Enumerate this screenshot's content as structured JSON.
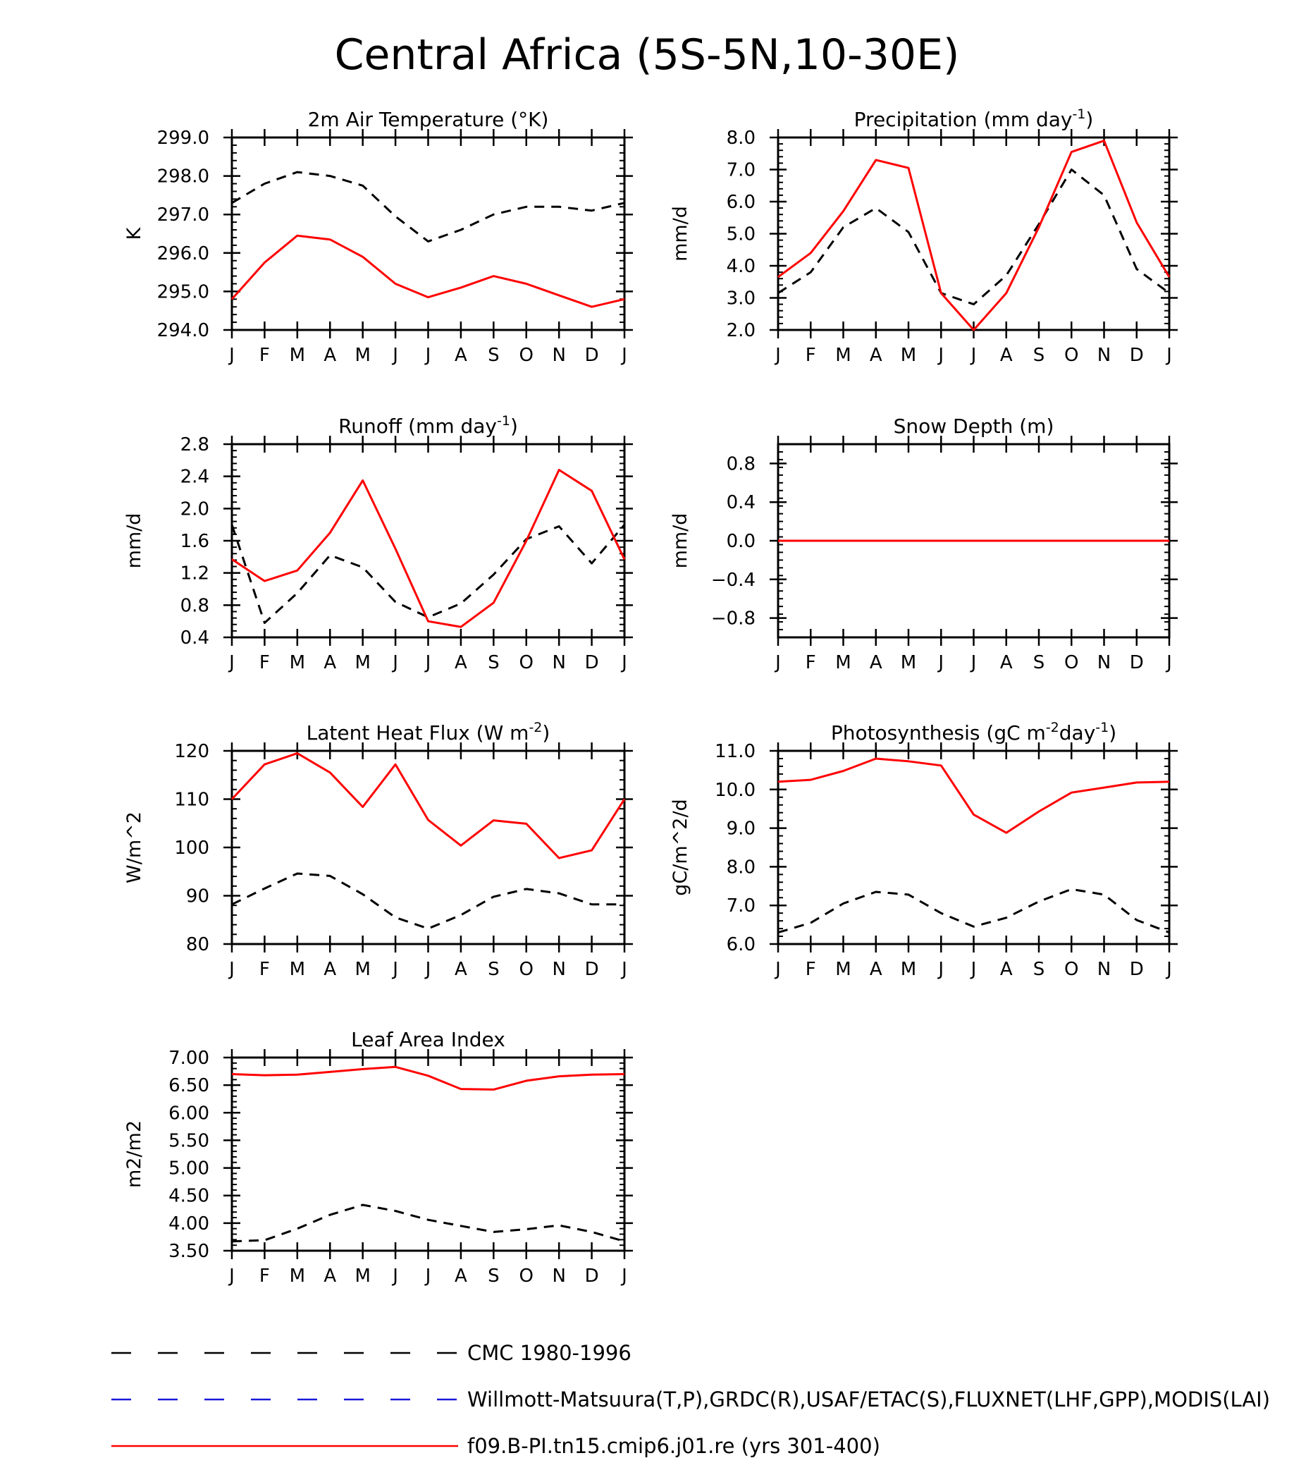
{
  "figure": {
    "title": "Central Africa (5S-5N,10-30E)"
  },
  "legend": [
    {
      "label": "CMC 1980-1996",
      "color": "#000000",
      "dash": "dashed"
    },
    {
      "label": "Willmott-Matsuura(T,P),GRDC(R),USAF/ETAC(S),FLUXNET(LHF,GPP),MODIS(LAI)",
      "color": "#1a1adc",
      "dash": "dashed"
    },
    {
      "label": "f09.B-PI.tn15.cmip6.j01.re (yrs 301-400)",
      "color": "#ff0000",
      "dash": "solid"
    }
  ],
  "chart_data": [
    {
      "type": "line",
      "title": "2m Air Temperature (°K)",
      "ylabel": "K",
      "categories": [
        "J",
        "F",
        "M",
        "A",
        "M",
        "J",
        "J",
        "A",
        "S",
        "O",
        "N",
        "D",
        "J"
      ],
      "ylim": [
        294.0,
        299.0
      ],
      "yticks": [
        294.0,
        295.0,
        296.0,
        297.0,
        298.0,
        299.0
      ],
      "ytick_labels": [
        "294.0",
        "295.0",
        "296.0",
        "297.0",
        "298.0",
        "299.0"
      ],
      "series": [
        {
          "name": "CMC 1980-1996",
          "color": "#000000",
          "dash": "dashed",
          "values": [
            297.3,
            297.8,
            298.1,
            298.0,
            297.75,
            296.95,
            296.3,
            296.6,
            297.0,
            297.2,
            297.2,
            297.1,
            297.3
          ]
        },
        {
          "name": "f09.B-PI.tn15.cmip6.j01.re (yrs 301-400)",
          "color": "#ff0000",
          "dash": "solid",
          "values": [
            294.8,
            295.75,
            296.45,
            296.35,
            295.9,
            295.2,
            294.85,
            295.1,
            295.4,
            295.2,
            294.9,
            294.6,
            294.8
          ]
        }
      ]
    },
    {
      "type": "line",
      "title": "Precipitation (mm day",
      "title_sup": "-1",
      "title_tail": ")",
      "ylabel": "mm/d",
      "categories": [
        "J",
        "F",
        "M",
        "A",
        "M",
        "J",
        "J",
        "A",
        "S",
        "O",
        "N",
        "D",
        "J"
      ],
      "ylim": [
        2.0,
        8.0
      ],
      "yticks": [
        2.0,
        3.0,
        4.0,
        5.0,
        6.0,
        7.0,
        8.0
      ],
      "ytick_labels": [
        "2.0",
        "3.0",
        "4.0",
        "5.0",
        "6.0",
        "7.0",
        "8.0"
      ],
      "series": [
        {
          "name": "CMC 1980-1996",
          "color": "#000000",
          "dash": "dashed",
          "values": [
            3.15,
            3.8,
            5.2,
            5.8,
            5.05,
            3.15,
            2.8,
            3.7,
            5.3,
            7.0,
            6.2,
            3.9,
            3.15
          ]
        },
        {
          "name": "f09.B-PI.tn15.cmip6.j01.re (yrs 301-400)",
          "color": "#ff0000",
          "dash": "solid",
          "values": [
            3.65,
            4.4,
            5.7,
            7.3,
            7.05,
            3.15,
            2.0,
            3.15,
            5.2,
            7.55,
            7.9,
            5.35,
            3.65
          ]
        }
      ]
    },
    {
      "type": "line",
      "title": "Runoff (mm day",
      "title_sup": "-1",
      "title_tail": ")",
      "ylabel": "mm/d",
      "categories": [
        "J",
        "F",
        "M",
        "A",
        "M",
        "J",
        "J",
        "A",
        "S",
        "O",
        "N",
        "D",
        "J"
      ],
      "ylim": [
        0.4,
        2.8
      ],
      "yticks": [
        0.4,
        0.8,
        1.2,
        1.6,
        2.0,
        2.4,
        2.8
      ],
      "ytick_labels": [
        "0.4",
        "0.8",
        "1.2",
        "1.6",
        "2.0",
        "2.4",
        "2.8"
      ],
      "series": [
        {
          "name": "CMC 1980-1996",
          "color": "#000000",
          "dash": "dashed",
          "values": [
            1.8,
            0.58,
            0.95,
            1.42,
            1.27,
            0.84,
            0.65,
            0.82,
            1.18,
            1.62,
            1.78,
            1.32,
            1.8
          ]
        },
        {
          "name": "f09.B-PI.tn15.cmip6.j01.re (yrs 301-400)",
          "color": "#ff0000",
          "dash": "solid",
          "values": [
            1.37,
            1.1,
            1.23,
            1.7,
            2.35,
            1.5,
            0.6,
            0.53,
            0.83,
            1.6,
            2.48,
            2.22,
            1.37
          ]
        }
      ]
    },
    {
      "type": "line",
      "title": "Snow Depth (m)",
      "ylabel": "mm/d",
      "categories": [
        "J",
        "F",
        "M",
        "A",
        "M",
        "J",
        "J",
        "A",
        "S",
        "O",
        "N",
        "D",
        "J"
      ],
      "ylim": [
        -1.0,
        1.0
      ],
      "yticks": [
        -0.8,
        -0.4,
        0.0,
        0.4,
        0.8
      ],
      "ytick_labels": [
        "−0.8",
        "−0.4",
        "0.0",
        "0.4",
        "0.8"
      ],
      "series": [
        {
          "name": "CMC 1980-1996",
          "color": "#000000",
          "dash": "dashed",
          "values": [
            0,
            0,
            0,
            0,
            0,
            0,
            0,
            0,
            0,
            0,
            0,
            0,
            0
          ]
        },
        {
          "name": "f09.B-PI.tn15.cmip6.j01.re (yrs 301-400)",
          "color": "#ff0000",
          "dash": "solid",
          "values": [
            0,
            0,
            0,
            0,
            0,
            0,
            0,
            0,
            0,
            0,
            0,
            0,
            0
          ]
        }
      ]
    },
    {
      "type": "line",
      "title": "Latent Heat Flux (W m",
      "title_sup": "-2",
      "title_tail": ")",
      "ylabel": "W/m^2",
      "categories": [
        "J",
        "F",
        "M",
        "A",
        "M",
        "J",
        "J",
        "A",
        "S",
        "O",
        "N",
        "D",
        "J"
      ],
      "ylim": [
        80,
        120
      ],
      "yticks": [
        80,
        90,
        100,
        110,
        120
      ],
      "ytick_labels": [
        "80",
        "90",
        "100",
        "110",
        "120"
      ],
      "series": [
        {
          "name": "CMC 1980-1996",
          "color": "#000000",
          "dash": "dashed",
          "values": [
            88.2,
            91.5,
            94.6,
            94.1,
            90.3,
            85.5,
            83.2,
            86.0,
            89.8,
            91.4,
            90.5,
            88.2,
            88.2
          ]
        },
        {
          "name": "f09.B-PI.tn15.cmip6.j01.re (yrs 301-400)",
          "color": "#ff0000",
          "dash": "solid",
          "values": [
            110.0,
            117.2,
            119.5,
            115.5,
            108.4,
            117.2,
            105.7,
            100.4,
            105.6,
            104.9,
            97.8,
            99.4,
            110.0
          ]
        }
      ]
    },
    {
      "type": "line",
      "title": "Photosynthesis (gC m",
      "title_sup": "-2",
      "title_mid": "day",
      "title_sup2": "-1",
      "title_tail": ")",
      "ylabel": "gC/m^2/d",
      "categories": [
        "J",
        "F",
        "M",
        "A",
        "M",
        "J",
        "J",
        "A",
        "S",
        "O",
        "N",
        "D",
        "J"
      ],
      "ylim": [
        6.0,
        11.0
      ],
      "yticks": [
        6.0,
        7.0,
        8.0,
        9.0,
        10.0,
        11.0
      ],
      "ytick_labels": [
        "6.0",
        "7.0",
        "8.0",
        "9.0",
        "10.0",
        "11.0"
      ],
      "series": [
        {
          "name": "CMC 1980-1996",
          "color": "#000000",
          "dash": "dashed",
          "values": [
            6.3,
            6.55,
            7.05,
            7.35,
            7.28,
            6.8,
            6.45,
            6.68,
            7.1,
            7.42,
            7.28,
            6.62,
            6.3
          ]
        },
        {
          "name": "f09.B-PI.tn15.cmip6.j01.re (yrs 301-400)",
          "color": "#ff0000",
          "dash": "solid",
          "values": [
            10.2,
            10.25,
            10.48,
            10.8,
            10.73,
            10.62,
            9.35,
            8.88,
            9.43,
            9.92,
            10.05,
            10.18,
            10.2
          ]
        }
      ]
    },
    {
      "type": "line",
      "title": "Leaf Area Index",
      "ylabel": "m2/m2",
      "categories": [
        "J",
        "F",
        "M",
        "A",
        "M",
        "J",
        "J",
        "A",
        "S",
        "O",
        "N",
        "D",
        "J"
      ],
      "ylim": [
        3.5,
        7.0
      ],
      "yticks": [
        3.5,
        4.0,
        4.5,
        5.0,
        5.5,
        6.0,
        6.5,
        7.0
      ],
      "ytick_labels": [
        "3.50",
        "4.00",
        "4.50",
        "5.00",
        "5.50",
        "6.00",
        "6.50",
        "7.00"
      ],
      "series": [
        {
          "name": "CMC 1980-1996",
          "color": "#000000",
          "dash": "dashed",
          "values": [
            3.67,
            3.69,
            3.9,
            4.15,
            4.33,
            4.22,
            4.06,
            3.95,
            3.84,
            3.89,
            3.96,
            3.84,
            3.67
          ]
        },
        {
          "name": "f09.B-PI.tn15.cmip6.j01.re (yrs 301-400)",
          "color": "#ff0000",
          "dash": "solid",
          "values": [
            6.7,
            6.68,
            6.69,
            6.74,
            6.79,
            6.83,
            6.67,
            6.43,
            6.42,
            6.58,
            6.66,
            6.69,
            6.7
          ]
        }
      ]
    }
  ]
}
